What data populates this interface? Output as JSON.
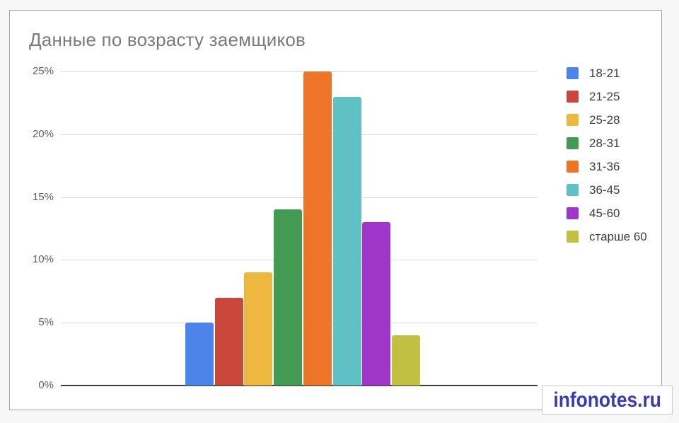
{
  "chart_data": {
    "type": "bar",
    "title": "Данные по возрасту заемщиков",
    "categories": [
      "18-21",
      "21-25",
      "25-28",
      "28-31",
      "31-36",
      "36-45",
      "45-60",
      "старше 60"
    ],
    "values": [
      5,
      7,
      9,
      14,
      25,
      23,
      13,
      4
    ],
    "unit": "%",
    "colors": [
      "#4d84ec",
      "#c9473b",
      "#eeb73f",
      "#429a53",
      "#ee7428",
      "#5fc0c5",
      "#a036c9",
      "#c2bf42"
    ],
    "ylabel": "",
    "xlabel": "",
    "ylim": [
      0,
      25
    ],
    "tick_values": [
      0,
      5,
      10,
      15,
      20,
      25
    ],
    "tick_labels": [
      "0%",
      "5%",
      "10%",
      "15%",
      "20%",
      "25%"
    ],
    "grid": true,
    "legend_position": "right",
    "title_color": "#7a7a7a",
    "gridline_color": "#d9d9d9",
    "axis_color": "#3c3c3c"
  },
  "watermark": {
    "text": "infonotes.ru",
    "color": "#3a3ab4"
  }
}
